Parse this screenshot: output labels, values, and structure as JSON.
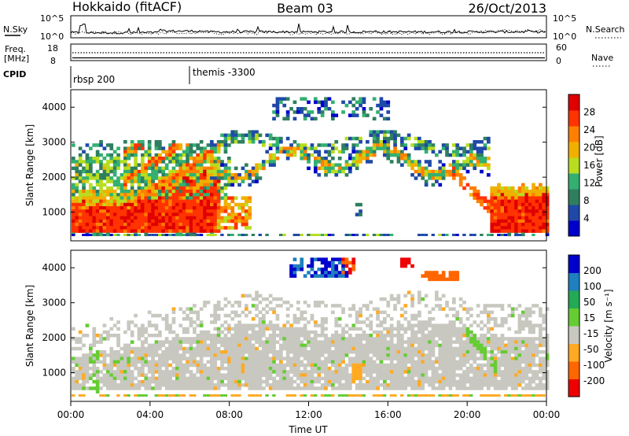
{
  "header": {
    "station": "Hokkaido (fitACF)",
    "beam": "Beam 03",
    "date": "26/Oct/2013"
  },
  "strips": {
    "nsky": {
      "label": "N.Sky",
      "ticks": [
        "10^5",
        "10^0"
      ]
    },
    "nsearch": {
      "label": "N.Search",
      "ticks": [
        "10^5",
        "10^0"
      ]
    },
    "freq": {
      "label_line1": "Freq.",
      "label_line2": "[MHz]",
      "ticks": [
        "18",
        "8"
      ]
    },
    "nave": {
      "label": "Nave",
      "ticks": [
        "60",
        "0"
      ]
    },
    "cpid": {
      "label": "CPID",
      "segments": [
        {
          "text": "rbsp 200",
          "start_hour": 0
        },
        {
          "text": "themis -3300",
          "start_hour": 6
        }
      ]
    }
  },
  "time_axis": {
    "title": "Time UT",
    "ticks": [
      "00:00",
      "04:00",
      "08:00",
      "12:00",
      "16:00",
      "20:00",
      "00:00"
    ]
  },
  "colors": {
    "power": [
      "#0000cc",
      "#1f49a8",
      "#2f7f5f",
      "#33b070",
      "#b8dd20",
      "#f0b000",
      "#ff7f00",
      "#ff3300",
      "#e00000"
    ],
    "velocity": [
      "#ee0000",
      "#ff6600",
      "#ffaa22",
      "#c8c8c0",
      "#66cc33",
      "#22aa55",
      "#1f7fbf",
      "#0000cc"
    ]
  },
  "chart_data": [
    {
      "type": "heatmap",
      "ylabel": "Slant Range [km]",
      "xlabel": "",
      "x_range_hours": [
        0,
        24
      ],
      "ylim": [
        180,
        4500
      ],
      "yticks": [
        1000,
        2000,
        3000,
        4000
      ],
      "colorbar": {
        "title": "Power [dB]",
        "ticks": [
          28,
          24,
          20,
          16,
          12,
          8,
          4
        ]
      }
    },
    {
      "type": "heatmap",
      "ylabel": "Slant Range [km]",
      "xlabel": "Time UT",
      "x_range_hours": [
        0,
        24
      ],
      "ylim": [
        180,
        4500
      ],
      "yticks": [
        1000,
        2000,
        3000,
        4000
      ],
      "colorbar": {
        "title": "Velocity [m s⁻¹]",
        "ticks": [
          200,
          100,
          50,
          15,
          -15,
          -50,
          -100,
          -200
        ]
      }
    }
  ]
}
